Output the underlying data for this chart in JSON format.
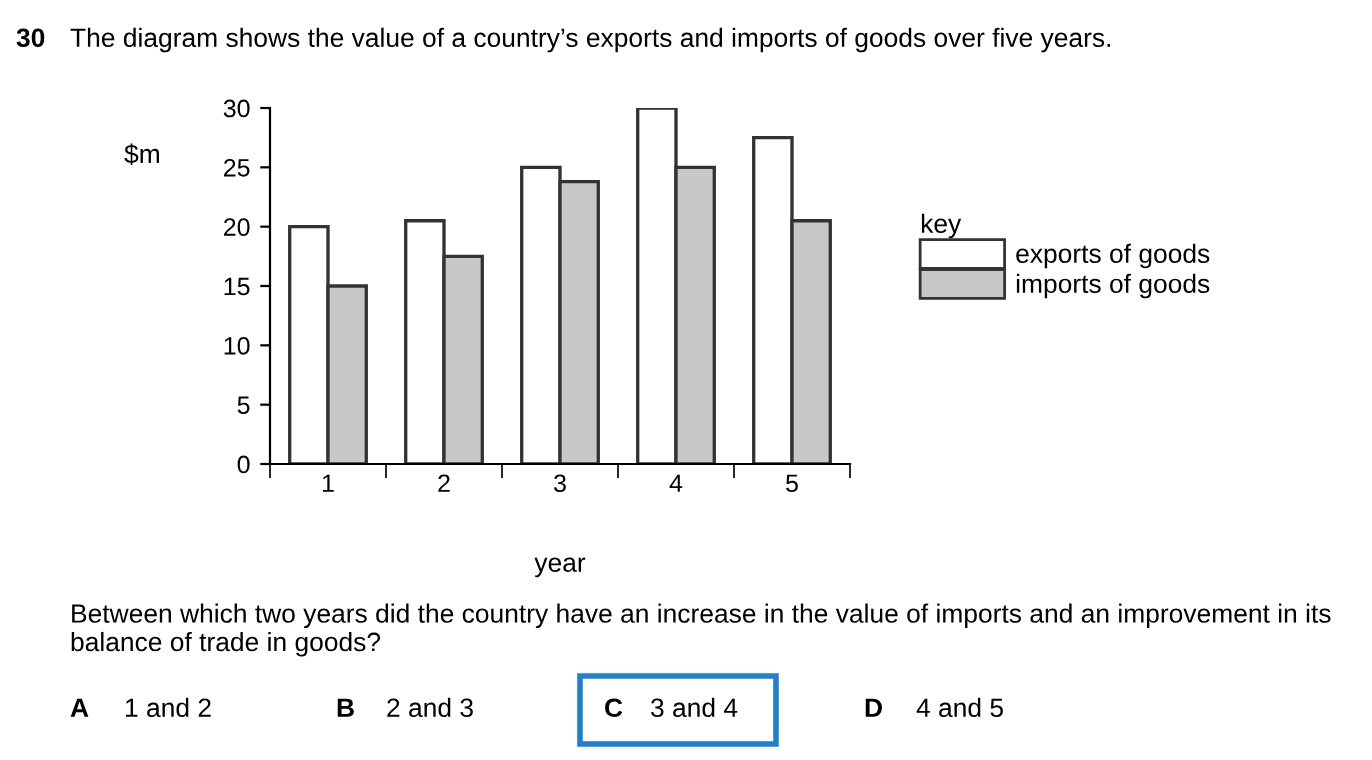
{
  "chart_data": {
    "type": "bar",
    "title": "The diagram shows the value of a country’s exports and imports of goods over five years.",
    "categories": [
      "1",
      "2",
      "3",
      "4",
      "5"
    ],
    "series": [
      {
        "name": "exports of goods",
        "color": "#ffffff",
        "values": [
          20,
          20.5,
          25,
          30,
          27.5
        ]
      },
      {
        "name": "imports of goods",
        "color": "#c8c8c8",
        "values": [
          15,
          17.5,
          23.8,
          25,
          20.5
        ]
      }
    ],
    "ylabel": "$m",
    "xlabel": "year",
    "legend_title": "key",
    "legend": "right",
    "ylim": [
      0,
      30
    ],
    "yticks": [
      0,
      5,
      10,
      15,
      20,
      25,
      30
    ],
    "grid": false,
    "annotations": [
      "30",
      "Between which two years did the country have an increase in the value of imports and an improvement in its balance of trade in goods?",
      "A",
      "1 and 2",
      "B",
      "2 and 3",
      "C",
      "3 and 4",
      "D",
      "4 and 5"
    ]
  }
}
